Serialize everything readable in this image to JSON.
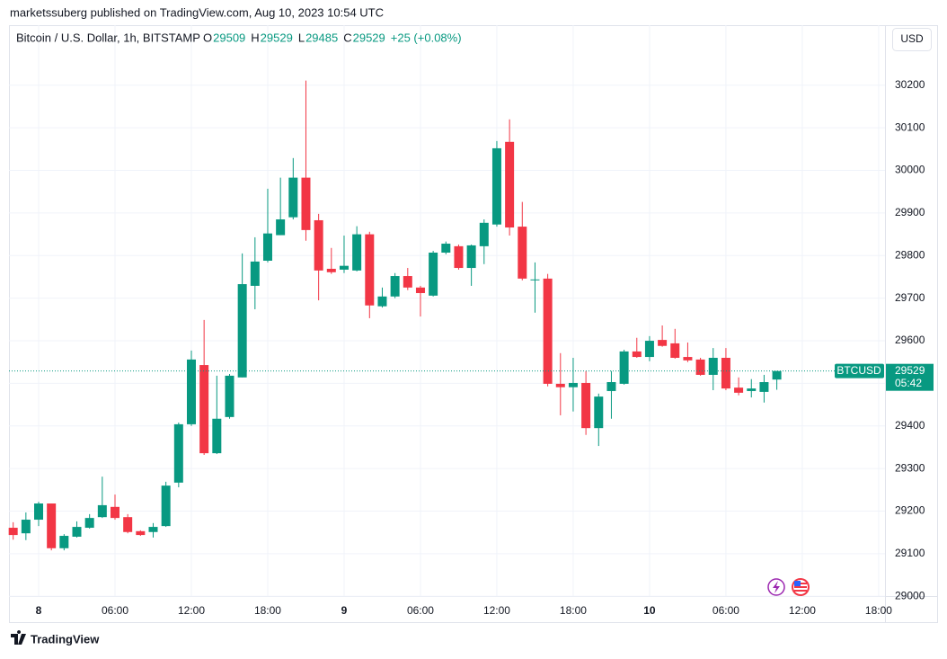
{
  "header": {
    "publisher": "marketssuberg published on TradingView.com, Aug 10, 2023 10:54 UTC"
  },
  "footer": {
    "brand": "TradingView"
  },
  "chart_data": {
    "type": "candlestick",
    "symbol_title": "Bitcoin / U.S. Dollar, 1h, BITSTAMP",
    "legend_labels": {
      "open": "O",
      "high": "H",
      "low": "L",
      "close": "C"
    },
    "change": "+25 (+0.08%)",
    "currency": "USD",
    "last_label": "BTCUSD",
    "countdown": "05:42",
    "up_color": "#089981",
    "down_color": "#f23645",
    "x": [
      -2,
      -1,
      0,
      1,
      2,
      3,
      4,
      5,
      6,
      7,
      8,
      9,
      10,
      11,
      12,
      13,
      14,
      15,
      16,
      17,
      18,
      19,
      20,
      21,
      22,
      23,
      24,
      25,
      26,
      27,
      28,
      29,
      30,
      31,
      32,
      33,
      34,
      35,
      36,
      37,
      38,
      39,
      40,
      41,
      42,
      43,
      44,
      45,
      46,
      47,
      48,
      49,
      50,
      51,
      52,
      53,
      54,
      55,
      56,
      57,
      58
    ],
    "open": [
      29161,
      29148,
      29180,
      29218,
      29113,
      29140,
      29161,
      29186,
      29210,
      29186,
      29153,
      29151,
      29165,
      29267,
      29404,
      29543,
      29336,
      29421,
      29514,
      29729,
      29788,
      29848,
      29890,
      29983,
      29883,
      29769,
      29767,
      29765,
      29850,
      29681,
      29704,
      29752,
      29725,
      29706,
      29807,
      29822,
      29771,
      29822,
      29873,
      30067,
      29868,
      29742,
      29746,
      29499,
      29491,
      29501,
      29395,
      29482,
      29499,
      29575,
      29562,
      29602,
      29594,
      29562,
      29556,
      29520,
      29560,
      29490,
      29482,
      29480,
      29509
    ],
    "high": [
      29174,
      29197,
      29222,
      29218,
      29146,
      29176,
      29193,
      29281,
      29239,
      29193,
      29155,
      29172,
      29269,
      29408,
      29577,
      29649,
      29518,
      29522,
      29805,
      29843,
      29957,
      29983,
      30029,
      30211,
      29898,
      29818,
      29847,
      29869,
      29856,
      29725,
      29759,
      29771,
      29729,
      29811,
      29833,
      29826,
      29826,
      29885,
      30069,
      30120,
      29926,
      29784,
      29757,
      29571,
      29560,
      29529,
      29476,
      29529,
      29579,
      29607,
      29611,
      29636,
      29628,
      29596,
      29560,
      29583,
      29583,
      29514,
      29510,
      29520,
      29529
    ],
    "low": [
      29133,
      29132,
      29165,
      29108,
      29108,
      29138,
      29159,
      29184,
      29180,
      29148,
      29142,
      29138,
      29163,
      29256,
      29400,
      29332,
      29334,
      29417,
      29514,
      29674,
      29784,
      29848,
      29885,
      29835,
      29695,
      29757,
      29759,
      29763,
      29653,
      29678,
      29700,
      29719,
      29657,
      29704,
      29803,
      29767,
      29729,
      29780,
      29868,
      29847,
      29742,
      29666,
      29493,
      29425,
      29434,
      29379,
      29353,
      29417,
      29497,
      29560,
      29552,
      29586,
      29558,
      29550,
      29518,
      29484,
      29484,
      29472,
      29467,
      29455,
      29485
    ],
    "close": [
      29144,
      29180,
      29218,
      29113,
      29142,
      29163,
      29184,
      29214,
      29184,
      29151,
      29144,
      29163,
      29260,
      29404,
      29556,
      29336,
      29417,
      29518,
      29733,
      29786,
      29852,
      29885,
      29983,
      29860,
      29765,
      29761,
      29776,
      29850,
      29683,
      29704,
      29752,
      29725,
      29712,
      29807,
      29828,
      29771,
      29824,
      29877,
      30052,
      29866,
      29746,
      29744,
      29499,
      29491,
      29501,
      29395,
      29469,
      29503,
      29575,
      29562,
      29600,
      29588,
      29560,
      29554,
      29520,
      29560,
      29488,
      29478,
      29488,
      29503,
      29529
    ],
    "xlim": [
      -2.33,
      66.5
    ],
    "xticks": [
      {
        "value": 0,
        "label": "8"
      },
      {
        "value": 6,
        "label": "06:00"
      },
      {
        "value": 12,
        "label": "12:00"
      },
      {
        "value": 18,
        "label": "18:00"
      },
      {
        "value": 24,
        "label": "9"
      },
      {
        "value": 30,
        "label": "06:00"
      },
      {
        "value": 36,
        "label": "12:00"
      },
      {
        "value": 42,
        "label": "18:00"
      },
      {
        "value": 48,
        "label": "10"
      },
      {
        "value": 54,
        "label": "06:00"
      },
      {
        "value": 60,
        "label": "12:00"
      },
      {
        "value": 66,
        "label": "18:00"
      }
    ],
    "ylim": [
      29000,
      30341
    ],
    "yticks": [
      29000,
      29100,
      29200,
      29300,
      29400,
      29500,
      29600,
      29700,
      29800,
      29900,
      30000,
      30100,
      30200
    ],
    "grid": true
  }
}
